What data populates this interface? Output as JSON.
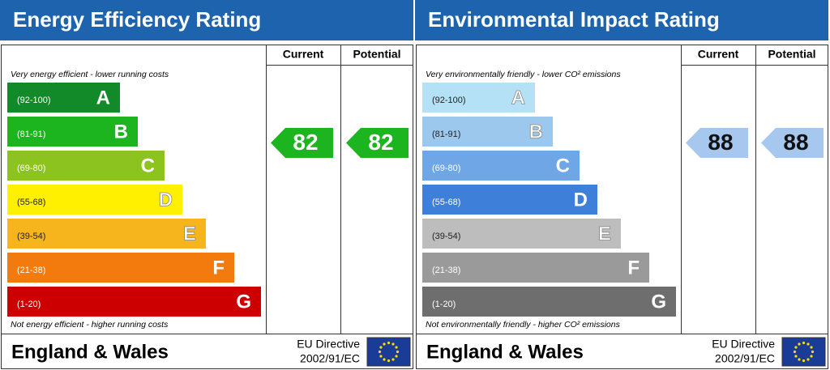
{
  "panels": [
    {
      "title": "Energy Efficiency Rating",
      "columns": [
        "Current",
        "Potential"
      ],
      "top_note": "Very energy efficient - lower running costs",
      "bottom_note": "Not energy efficient - higher running costs",
      "bands": [
        {
          "range": "(92-100)",
          "letter": "A",
          "color": "#128a2a"
        },
        {
          "range": "(81-91)",
          "letter": "B",
          "color": "#1cb41f"
        },
        {
          "range": "(69-80)",
          "letter": "C",
          "color": "#8dc31f"
        },
        {
          "range": "(55-68)",
          "letter": "D",
          "color": "#fff000"
        },
        {
          "range": "(39-54)",
          "letter": "E",
          "color": "#f6b51c"
        },
        {
          "range": "(21-38)",
          "letter": "F",
          "color": "#f37b0e"
        },
        {
          "range": "(1-20)",
          "letter": "G",
          "color": "#cc0000"
        }
      ],
      "current": 82,
      "potential": 82,
      "arrow_color": "#1cb41f",
      "region": "England & Wales",
      "directive": [
        "EU Directive",
        "2002/91/EC"
      ]
    },
    {
      "title": "Environmental Impact Rating",
      "columns": [
        "Current",
        "Potential"
      ],
      "top_note": "Very environmentally friendly - lower CO² emissions",
      "bottom_note": "Not environmentally friendly - higher CO² emissions",
      "bands": [
        {
          "range": "(92-100)",
          "letter": "A",
          "color": "#b4e1f6"
        },
        {
          "range": "(81-91)",
          "letter": "B",
          "color": "#9dc8ee"
        },
        {
          "range": "(69-80)",
          "letter": "C",
          "color": "#6fa7e6"
        },
        {
          "range": "(55-68)",
          "letter": "D",
          "color": "#3d7fd9"
        },
        {
          "range": "(39-54)",
          "letter": "E",
          "color": "#bdbdbd"
        },
        {
          "range": "(21-38)",
          "letter": "F",
          "color": "#9a9a9a"
        },
        {
          "range": "(1-20)",
          "letter": "G",
          "color": "#6e6e6e"
        }
      ],
      "current": 88,
      "potential": 88,
      "arrow_color": "#a7c8ee",
      "region": "England & Wales",
      "directive": [
        "EU Directive",
        "2002/91/EC"
      ]
    }
  ]
}
